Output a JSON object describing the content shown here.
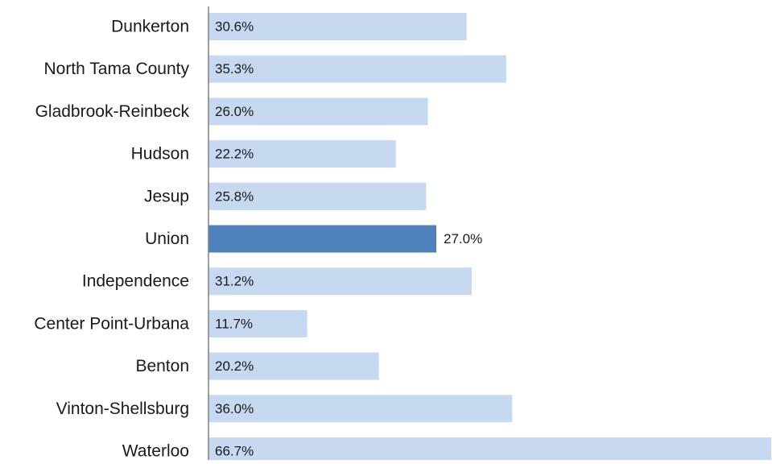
{
  "chart_data": {
    "type": "bar",
    "orientation": "horizontal",
    "categories": [
      "Dunkerton",
      "North Tama County",
      "Gladbrook-Reinbeck",
      "Hudson",
      "Jesup",
      "Union",
      "Independence",
      "Center Point-Urbana",
      "Benton",
      "Vinton-Shellsburg",
      "Waterloo"
    ],
    "values": [
      30.6,
      35.3,
      26.0,
      22.2,
      25.8,
      27.0,
      31.2,
      11.7,
      20.2,
      36.0,
      66.7
    ],
    "value_labels": [
      "30.6%",
      "35.3%",
      "26.0%",
      "22.2%",
      "25.8%",
      "27.0%",
      "31.2%",
      "11.7%",
      "20.2%",
      "36.0%",
      "66.7%"
    ],
    "highlight_category": "Union",
    "title": "",
    "xlabel": "",
    "ylabel": "",
    "xlim": [
      0,
      66.7
    ],
    "grid": false,
    "legend": "none",
    "colors": {
      "bar": "#c6d9f1",
      "highlight_bar": "#4f81bd",
      "axis": "#7f7f7f",
      "text": "#1a1a1a"
    }
  }
}
